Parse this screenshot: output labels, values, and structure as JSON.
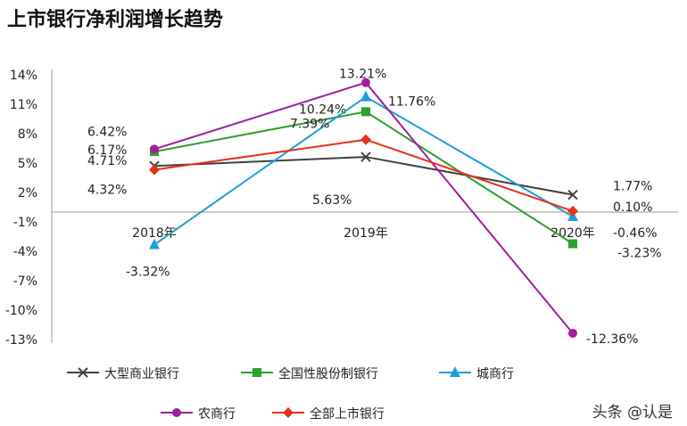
{
  "chart_data": {
    "type": "line",
    "title": "上市银行净利润增长趋势",
    "categories": [
      "2018年",
      "2019年",
      "2020年"
    ],
    "yticks": [
      "14%",
      "11%",
      "8%",
      "5%",
      "2%",
      "-1%",
      "-4%",
      "-7%",
      "-10%",
      "-13%"
    ],
    "ylim": [
      -13,
      14
    ],
    "legend_position": "bottom",
    "series": [
      {
        "name": "大型商业银行",
        "values": [
          4.71,
          5.63,
          1.77
        ],
        "labels": [
          "4.71%",
          "5.63%",
          "1.77%"
        ],
        "color": "#404040",
        "marker": "x"
      },
      {
        "name": "全国性股份制银行",
        "values": [
          6.17,
          10.24,
          -3.23
        ],
        "labels": [
          "6.17%",
          "10.24%",
          "-3.23%"
        ],
        "color": "#2ca02c",
        "marker": "square"
      },
      {
        "name": "城商行",
        "values": [
          -3.32,
          11.76,
          -0.46
        ],
        "labels": [
          "-3.32%",
          "11.76%",
          "-0.46%"
        ],
        "color": "#1f9ed8",
        "marker": "triangle"
      },
      {
        "name": "农商行",
        "values": [
          6.42,
          13.21,
          -12.36
        ],
        "labels": [
          "6.42%",
          "13.21%",
          "-12.36%"
        ],
        "color": "#a020a0",
        "marker": "circle"
      },
      {
        "name": "全部上市银行",
        "values": [
          4.32,
          7.39,
          0.1
        ],
        "labels": [
          "4.32%",
          "7.39%",
          "0.10%"
        ],
        "color": "#e8301c",
        "marker": "diamond"
      }
    ]
  },
  "watermark": "头条 @认是"
}
